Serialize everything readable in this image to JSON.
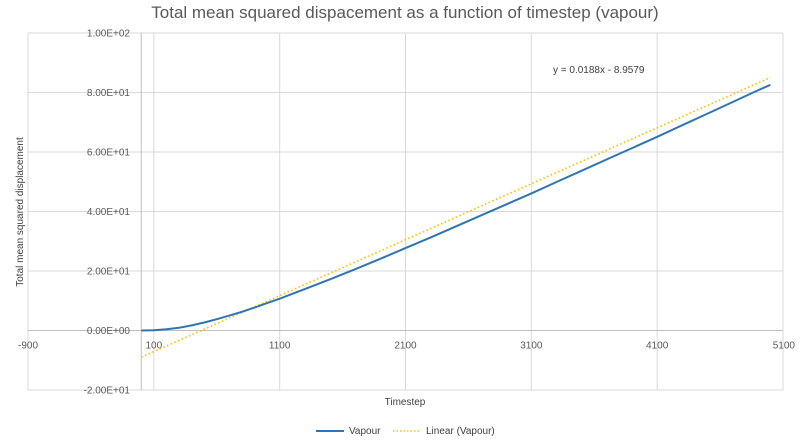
{
  "chart_data": {
    "type": "scatter",
    "title": "Total mean squared dispacement as a function of timestep (vapour)",
    "xlabel": "Timestep",
    "ylabel": "Total mean squared displacement",
    "xlim": [
      -900,
      5100
    ],
    "ylim": [
      -20,
      100
    ],
    "x_ticks": [
      -900,
      100,
      1100,
      2100,
      3100,
      4100,
      5100
    ],
    "x_tick_labels": [
      "-900",
      "100",
      "1100",
      "2100",
      "3100",
      "4100",
      "5100"
    ],
    "y_ticks": [
      -20,
      0,
      20,
      40,
      60,
      80,
      100
    ],
    "y_tick_labels": [
      "-2.00E+01",
      "0.00E+00",
      "2.00E+01",
      "4.00E+01",
      "6.00E+01",
      "8.00E+01",
      "1.00E+02"
    ],
    "grid": true,
    "legend_position": "bottom",
    "series": [
      {
        "name": "Vapour",
        "color": "#2E75B6",
        "style": "solid",
        "x": [
          0,
          100,
          200,
          300,
          400,
          500,
          600,
          700,
          800,
          900,
          1000,
          1100,
          1300,
          1500,
          1700,
          1900,
          2100,
          2300,
          2500,
          2700,
          2900,
          3100,
          3300,
          3500,
          3700,
          3900,
          4100,
          4300,
          4500,
          4700,
          4900,
          5000
        ],
        "y": [
          0,
          0.1,
          0.4,
          0.9,
          1.7,
          2.7,
          3.8,
          5.0,
          6.3,
          7.7,
          9.2,
          10.7,
          13.9,
          17.2,
          20.6,
          24.1,
          27.7,
          31.3,
          35.0,
          38.7,
          42.4,
          46.1,
          49.9,
          53.7,
          57.5,
          61.3,
          65.1,
          69.0,
          72.9,
          76.8,
          80.7,
          82.6
        ]
      },
      {
        "name": "Linear (Vapour)",
        "color": "#FFC000",
        "style": "dotted",
        "trendline": {
          "slope": 0.0188,
          "intercept": -8.9579
        },
        "x": [
          0,
          5000
        ],
        "y": [
          -8.9579,
          85.0421
        ]
      }
    ],
    "annotations": [
      {
        "text": "y = 0.0188x - 8.9579"
      }
    ]
  }
}
